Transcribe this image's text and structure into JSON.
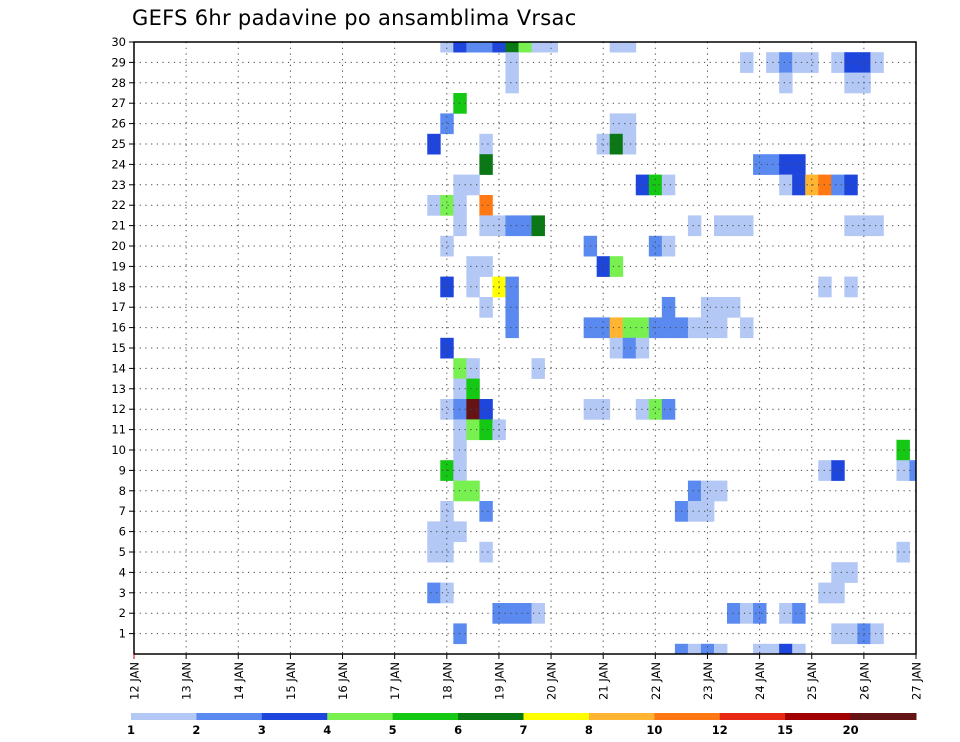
{
  "title": "GEFS 6hr padavine po ansamblima Vrsac",
  "chart_data": {
    "type": "heatmap",
    "title": "GEFS 6hr padavine po ansamblima Vrsac",
    "x_ticks": [
      "12 JAN",
      "13 JAN",
      "14 JAN",
      "15 JAN",
      "16 JAN",
      "17 JAN",
      "18 JAN",
      "19 JAN",
      "20 JAN",
      "21 JAN",
      "22 JAN",
      "23 JAN",
      "24 JAN",
      "25 JAN",
      "26 JAN",
      "27 JAN"
    ],
    "y_ticks": [
      1,
      2,
      3,
      4,
      5,
      6,
      7,
      8,
      9,
      10,
      11,
      12,
      13,
      14,
      15,
      16,
      17,
      18,
      19,
      20,
      21,
      22,
      23,
      24,
      25,
      26,
      27,
      28,
      29,
      30
    ],
    "x_range": [
      "12 JAN 00Z",
      "27 JAN 00Z"
    ],
    "y_range": [
      0,
      30
    ],
    "grid": true,
    "time_step_hours": 6,
    "color_levels": [
      1,
      2,
      3,
      4,
      5,
      6,
      7,
      8,
      10,
      12,
      15,
      20
    ],
    "colorbar_labels": [
      "1",
      "2",
      "3",
      "4",
      "5",
      "6",
      "7",
      "8",
      "10",
      "12",
      "15",
      "20"
    ],
    "colors": [
      "#b4c8f5",
      "#5a8af0",
      "#1e46dc",
      "#78f050",
      "#14c814",
      "#0a7814",
      "#ffff00",
      "#ffb432",
      "#ff7814",
      "#e62814",
      "#a00000",
      "#641414"
    ],
    "cells": [
      {
        "member": 30,
        "time": "18 JAN 00Z",
        "value": 1.5
      },
      {
        "member": 30,
        "time": "18 JAN 06Z",
        "value": 3.5
      },
      {
        "member": 30,
        "time": "18 JAN 12Z",
        "value": 2.5
      },
      {
        "member": 30,
        "time": "18 JAN 18Z",
        "value": 2.5
      },
      {
        "member": 30,
        "time": "19 JAN 00Z",
        "value": 3.5
      },
      {
        "member": 30,
        "time": "19 JAN 06Z",
        "value": 6.5
      },
      {
        "member": 30,
        "time": "19 JAN 12Z",
        "value": 4.5
      },
      {
        "member": 30,
        "time": "19 JAN 18Z",
        "value": 1.5
      },
      {
        "member": 30,
        "time": "20 JAN 00Z",
        "value": 1.5
      },
      {
        "member": 30,
        "time": "21 JAN 06Z",
        "value": 1.5
      },
      {
        "member": 30,
        "time": "21 JAN 12Z",
        "value": 1.5
      },
      {
        "member": 29,
        "time": "19 JAN 06Z",
        "value": 1.5
      },
      {
        "member": 29,
        "time": "23 JAN 18Z",
        "value": 1.5
      },
      {
        "member": 29,
        "time": "24 JAN 06Z",
        "value": 1.5
      },
      {
        "member": 29,
        "time": "24 JAN 12Z",
        "value": 2.5
      },
      {
        "member": 29,
        "time": "24 JAN 18Z",
        "value": 1.5
      },
      {
        "member": 29,
        "time": "25 JAN 00Z",
        "value": 1.5
      },
      {
        "member": 29,
        "time": "25 JAN 12Z",
        "value": 1.5
      },
      {
        "member": 29,
        "time": "25 JAN 18Z",
        "value": 3.5
      },
      {
        "member": 29,
        "time": "26 JAN 00Z",
        "value": 3.5
      },
      {
        "member": 29,
        "time": "26 JAN 06Z",
        "value": 1.5
      },
      {
        "member": 28,
        "time": "19 JAN 06Z",
        "value": 1.5
      },
      {
        "member": 28,
        "time": "24 JAN 12Z",
        "value": 1.5
      },
      {
        "member": 28,
        "time": "25 JAN 18Z",
        "value": 1.5
      },
      {
        "member": 28,
        "time": "26 JAN 00Z",
        "value": 1.5
      },
      {
        "member": 27,
        "time": "18 JAN 06Z",
        "value": 5.5
      },
      {
        "member": 26,
        "time": "18 JAN 00Z",
        "value": 2.5
      },
      {
        "member": 26,
        "time": "21 JAN 06Z",
        "value": 1.5
      },
      {
        "member": 26,
        "time": "21 JAN 12Z",
        "value": 1.5
      },
      {
        "member": 25,
        "time": "17 JAN 18Z",
        "value": 3.5
      },
      {
        "member": 25,
        "time": "18 JAN 18Z",
        "value": 1.5
      },
      {
        "member": 25,
        "time": "21 JAN 00Z",
        "value": 1.5
      },
      {
        "member": 25,
        "time": "21 JAN 06Z",
        "value": 6.5
      },
      {
        "member": 25,
        "time": "21 JAN 12Z",
        "value": 1.5
      },
      {
        "member": 24,
        "time": "18 JAN 18Z",
        "value": 6.5
      },
      {
        "member": 24,
        "time": "24 JAN 00Z",
        "value": 2.5
      },
      {
        "member": 24,
        "time": "24 JAN 06Z",
        "value": 2.5
      },
      {
        "member": 24,
        "time": "24 JAN 12Z",
        "value": 3.5
      },
      {
        "member": 24,
        "time": "24 JAN 18Z",
        "value": 3.5
      },
      {
        "member": 23,
        "time": "18 JAN 06Z",
        "value": 1.5
      },
      {
        "member": 23,
        "time": "18 JAN 12Z",
        "value": 1.5
      },
      {
        "member": 23,
        "time": "21 JAN 18Z",
        "value": 3.5
      },
      {
        "member": 23,
        "time": "22 JAN 00Z",
        "value": 5.5
      },
      {
        "member": 23,
        "time": "22 JAN 06Z",
        "value": 1.5
      },
      {
        "member": 23,
        "time": "24 JAN 12Z",
        "value": 1.5
      },
      {
        "member": 23,
        "time": "24 JAN 18Z",
        "value": 3.5
      },
      {
        "member": 23,
        "time": "25 JAN 00Z",
        "value": 9
      },
      {
        "member": 23,
        "time": "25 JAN 06Z",
        "value": 11
      },
      {
        "member": 23,
        "time": "25 JAN 12Z",
        "value": 2.5
      },
      {
        "member": 23,
        "time": "25 JAN 18Z",
        "value": 3.5
      },
      {
        "member": 22,
        "time": "17 JAN 18Z",
        "value": 1.5
      },
      {
        "member": 22,
        "time": "18 JAN 00Z",
        "value": 4.5
      },
      {
        "member": 22,
        "time": "18 JAN 06Z",
        "value": 1.5
      },
      {
        "member": 22,
        "time": "18 JAN 18Z",
        "value": 11
      },
      {
        "member": 21,
        "time": "18 JAN 06Z",
        "value": 1.5
      },
      {
        "member": 21,
        "time": "18 JAN 18Z",
        "value": 1.5
      },
      {
        "member": 21,
        "time": "19 JAN 00Z",
        "value": 1.5
      },
      {
        "member": 21,
        "time": "19 JAN 06Z",
        "value": 2.5
      },
      {
        "member": 21,
        "time": "19 JAN 12Z",
        "value": 2.5
      },
      {
        "member": 21,
        "time": "19 JAN 18Z",
        "value": 6.5
      },
      {
        "member": 21,
        "time": "22 JAN 18Z",
        "value": 1.5
      },
      {
        "member": 21,
        "time": "23 JAN 06Z",
        "value": 1.5
      },
      {
        "member": 21,
        "time": "23 JAN 12Z",
        "value": 1.5
      },
      {
        "member": 21,
        "time": "23 JAN 18Z",
        "value": 1.5
      },
      {
        "member": 21,
        "time": "25 JAN 18Z",
        "value": 1.5
      },
      {
        "member": 21,
        "time": "26 JAN 00Z",
        "value": 1.5
      },
      {
        "member": 21,
        "time": "26 JAN 06Z",
        "value": 1.5
      },
      {
        "member": 20,
        "time": "18 JAN 00Z",
        "value": 1.5
      },
      {
        "member": 20,
        "time": "20 JAN 18Z",
        "value": 2.5
      },
      {
        "member": 20,
        "time": "22 JAN 00Z",
        "value": 2.5
      },
      {
        "member": 20,
        "time": "22 JAN 06Z",
        "value": 1.5
      },
      {
        "member": 19,
        "time": "18 JAN 12Z",
        "value": 1.5
      },
      {
        "member": 19,
        "time": "18 JAN 18Z",
        "value": 1.5
      },
      {
        "member": 19,
        "time": "21 JAN 00Z",
        "value": 3.5
      },
      {
        "member": 19,
        "time": "21 JAN 06Z",
        "value": 4.5
      },
      {
        "member": 18,
        "time": "18 JAN 00Z",
        "value": 3.5
      },
      {
        "member": 18,
        "time": "18 JAN 12Z",
        "value": 1.5
      },
      {
        "member": 18,
        "time": "19 JAN 00Z",
        "value": 7.5
      },
      {
        "member": 18,
        "time": "19 JAN 06Z",
        "value": 2.5
      },
      {
        "member": 18,
        "time": "25 JAN 06Z",
        "value": 1.5
      },
      {
        "member": 18,
        "time": "25 JAN 18Z",
        "value": 1.5
      },
      {
        "member": 17,
        "time": "18 JAN 18Z",
        "value": 1.5
      },
      {
        "member": 17,
        "time": "19 JAN 06Z",
        "value": 2.5
      },
      {
        "member": 17,
        "time": "22 JAN 06Z",
        "value": 2.5
      },
      {
        "member": 17,
        "time": "23 JAN 00Z",
        "value": 1.5
      },
      {
        "member": 17,
        "time": "23 JAN 06Z",
        "value": 1.5
      },
      {
        "member": 17,
        "time": "23 JAN 12Z",
        "value": 1.5
      },
      {
        "member": 16,
        "time": "19 JAN 06Z",
        "value": 2.5
      },
      {
        "member": 16,
        "time": "20 JAN 18Z",
        "value": 2.5
      },
      {
        "member": 16,
        "time": "21 JAN 00Z",
        "value": 2.5
      },
      {
        "member": 16,
        "time": "21 JAN 06Z",
        "value": 9
      },
      {
        "member": 16,
        "time": "21 JAN 12Z",
        "value": 4.5
      },
      {
        "member": 16,
        "time": "21 JAN 18Z",
        "value": 4.5
      },
      {
        "member": 16,
        "time": "22 JAN 00Z",
        "value": 2.5
      },
      {
        "member": 16,
        "time": "22 JAN 06Z",
        "value": 2.5
      },
      {
        "member": 16,
        "time": "22 JAN 12Z",
        "value": 2.5
      },
      {
        "member": 16,
        "time": "22 JAN 18Z",
        "value": 1.5
      },
      {
        "member": 16,
        "time": "23 JAN 00Z",
        "value": 1.5
      },
      {
        "member": 16,
        "time": "23 JAN 06Z",
        "value": 1.5
      },
      {
        "member": 16,
        "time": "23 JAN 18Z",
        "value": 1.5
      },
      {
        "member": 15,
        "time": "18 JAN 00Z",
        "value": 3.5
      },
      {
        "member": 15,
        "time": "21 JAN 06Z",
        "value": 1.5
      },
      {
        "member": 15,
        "time": "21 JAN 12Z",
        "value": 2.5
      },
      {
        "member": 15,
        "time": "21 JAN 18Z",
        "value": 1.5
      },
      {
        "member": 14,
        "time": "18 JAN 06Z",
        "value": 4.5
      },
      {
        "member": 14,
        "time": "18 JAN 12Z",
        "value": 1.5
      },
      {
        "member": 14,
        "time": "19 JAN 18Z",
        "value": 1.5
      },
      {
        "member": 13,
        "time": "18 JAN 06Z",
        "value": 1.5
      },
      {
        "member": 13,
        "time": "18 JAN 12Z",
        "value": 5.5
      },
      {
        "member": 12,
        "time": "18 JAN 00Z",
        "value": 1.5
      },
      {
        "member": 12,
        "time": "18 JAN 06Z",
        "value": 2.5
      },
      {
        "member": 12,
        "time": "18 JAN 12Z",
        "value": 22
      },
      {
        "member": 12,
        "time": "18 JAN 18Z",
        "value": 3.5
      },
      {
        "member": 12,
        "time": "20 JAN 18Z",
        "value": 1.5
      },
      {
        "member": 12,
        "time": "21 JAN 00Z",
        "value": 1.5
      },
      {
        "member": 12,
        "time": "21 JAN 18Z",
        "value": 1.5
      },
      {
        "member": 12,
        "time": "22 JAN 00Z",
        "value": 4.5
      },
      {
        "member": 12,
        "time": "22 JAN 06Z",
        "value": 2.5
      },
      {
        "member": 11,
        "time": "18 JAN 06Z",
        "value": 1.5
      },
      {
        "member": 11,
        "time": "18 JAN 12Z",
        "value": 4.5
      },
      {
        "member": 11,
        "time": "18 JAN 18Z",
        "value": 5.5
      },
      {
        "member": 11,
        "time": "19 JAN 00Z",
        "value": 1.5
      },
      {
        "member": 10,
        "time": "18 JAN 06Z",
        "value": 1.5
      },
      {
        "member": 10,
        "time": "26 JAN 18Z",
        "value": 5.5
      },
      {
        "member": 9,
        "time": "18 JAN 00Z",
        "value": 5.5
      },
      {
        "member": 9,
        "time": "18 JAN 06Z",
        "value": 1.5
      },
      {
        "member": 9,
        "time": "25 JAN 06Z",
        "value": 1.5
      },
      {
        "member": 9,
        "time": "25 JAN 12Z",
        "value": 3.5
      },
      {
        "member": 9,
        "time": "26 JAN 18Z",
        "value": 1.5
      },
      {
        "member": 9,
        "time": "27 JAN 00Z",
        "value": 2.5
      },
      {
        "member": 8,
        "time": "18 JAN 06Z",
        "value": 4.5
      },
      {
        "member": 8,
        "time": "18 JAN 12Z",
        "value": 4.5
      },
      {
        "member": 8,
        "time": "22 JAN 18Z",
        "value": 2.5
      },
      {
        "member": 8,
        "time": "23 JAN 00Z",
        "value": 1.5
      },
      {
        "member": 8,
        "time": "23 JAN 06Z",
        "value": 1.5
      },
      {
        "member": 7,
        "time": "18 JAN 00Z",
        "value": 1.5
      },
      {
        "member": 7,
        "time": "18 JAN 18Z",
        "value": 2.5
      },
      {
        "member": 7,
        "time": "22 JAN 12Z",
        "value": 2.5
      },
      {
        "member": 7,
        "time": "22 JAN 18Z",
        "value": 1.5
      },
      {
        "member": 7,
        "time": "23 JAN 00Z",
        "value": 1.5
      },
      {
        "member": 6,
        "time": "17 JAN 18Z",
        "value": 1.5
      },
      {
        "member": 6,
        "time": "18 JAN 00Z",
        "value": 1.5
      },
      {
        "member": 6,
        "time": "18 JAN 06Z",
        "value": 1.5
      },
      {
        "member": 5,
        "time": "17 JAN 18Z",
        "value": 1.5
      },
      {
        "member": 5,
        "time": "18 JAN 00Z",
        "value": 1.5
      },
      {
        "member": 5,
        "time": "18 JAN 18Z",
        "value": 1.5
      },
      {
        "member": 5,
        "time": "26 JAN 18Z",
        "value": 1.5
      },
      {
        "member": 4,
        "time": "25 JAN 12Z",
        "value": 1.5
      },
      {
        "member": 4,
        "time": "25 JAN 18Z",
        "value": 1.5
      },
      {
        "member": 3,
        "time": "17 JAN 18Z",
        "value": 2.5
      },
      {
        "member": 3,
        "time": "18 JAN 00Z",
        "value": 1.5
      },
      {
        "member": 3,
        "time": "25 JAN 06Z",
        "value": 1.5
      },
      {
        "member": 3,
        "time": "25 JAN 12Z",
        "value": 1.5
      },
      {
        "member": 2,
        "time": "19 JAN 00Z",
        "value": 2.5
      },
      {
        "member": 2,
        "time": "19 JAN 06Z",
        "value": 2.5
      },
      {
        "member": 2,
        "time": "19 JAN 12Z",
        "value": 2.5
      },
      {
        "member": 2,
        "time": "19 JAN 18Z",
        "value": 1.5
      },
      {
        "member": 2,
        "time": "23 JAN 12Z",
        "value": 2.5
      },
      {
        "member": 2,
        "time": "23 JAN 18Z",
        "value": 1.5
      },
      {
        "member": 2,
        "time": "24 JAN 00Z",
        "value": 2.5
      },
      {
        "member": 2,
        "time": "24 JAN 12Z",
        "value": 1.5
      },
      {
        "member": 2,
        "time": "24 JAN 18Z",
        "value": 2.5
      },
      {
        "member": 1,
        "time": "18 JAN 06Z",
        "value": 2.5
      },
      {
        "member": 1,
        "time": "25 JAN 12Z",
        "value": 1.5
      },
      {
        "member": 1,
        "time": "25 JAN 18Z",
        "value": 1.5
      },
      {
        "member": 1,
        "time": "26 JAN 00Z",
        "value": 2.5
      },
      {
        "member": 1,
        "time": "26 JAN 06Z",
        "value": 1.5
      },
      {
        "member": 0,
        "time": "22 JAN 12Z",
        "value": 2.5
      },
      {
        "member": 0,
        "time": "22 JAN 18Z",
        "value": 1.5
      },
      {
        "member": 0,
        "time": "23 JAN 00Z",
        "value": 2.5
      },
      {
        "member": 0,
        "time": "23 JAN 06Z",
        "value": 1.5
      },
      {
        "member": 0,
        "time": "24 JAN 00Z",
        "value": 1.5
      },
      {
        "member": 0,
        "time": "24 JAN 06Z",
        "value": 1.5
      },
      {
        "member": 0,
        "time": "24 JAN 12Z",
        "value": 3.5
      },
      {
        "member": 0,
        "time": "24 JAN 18Z",
        "value": 1.5
      }
    ]
  }
}
